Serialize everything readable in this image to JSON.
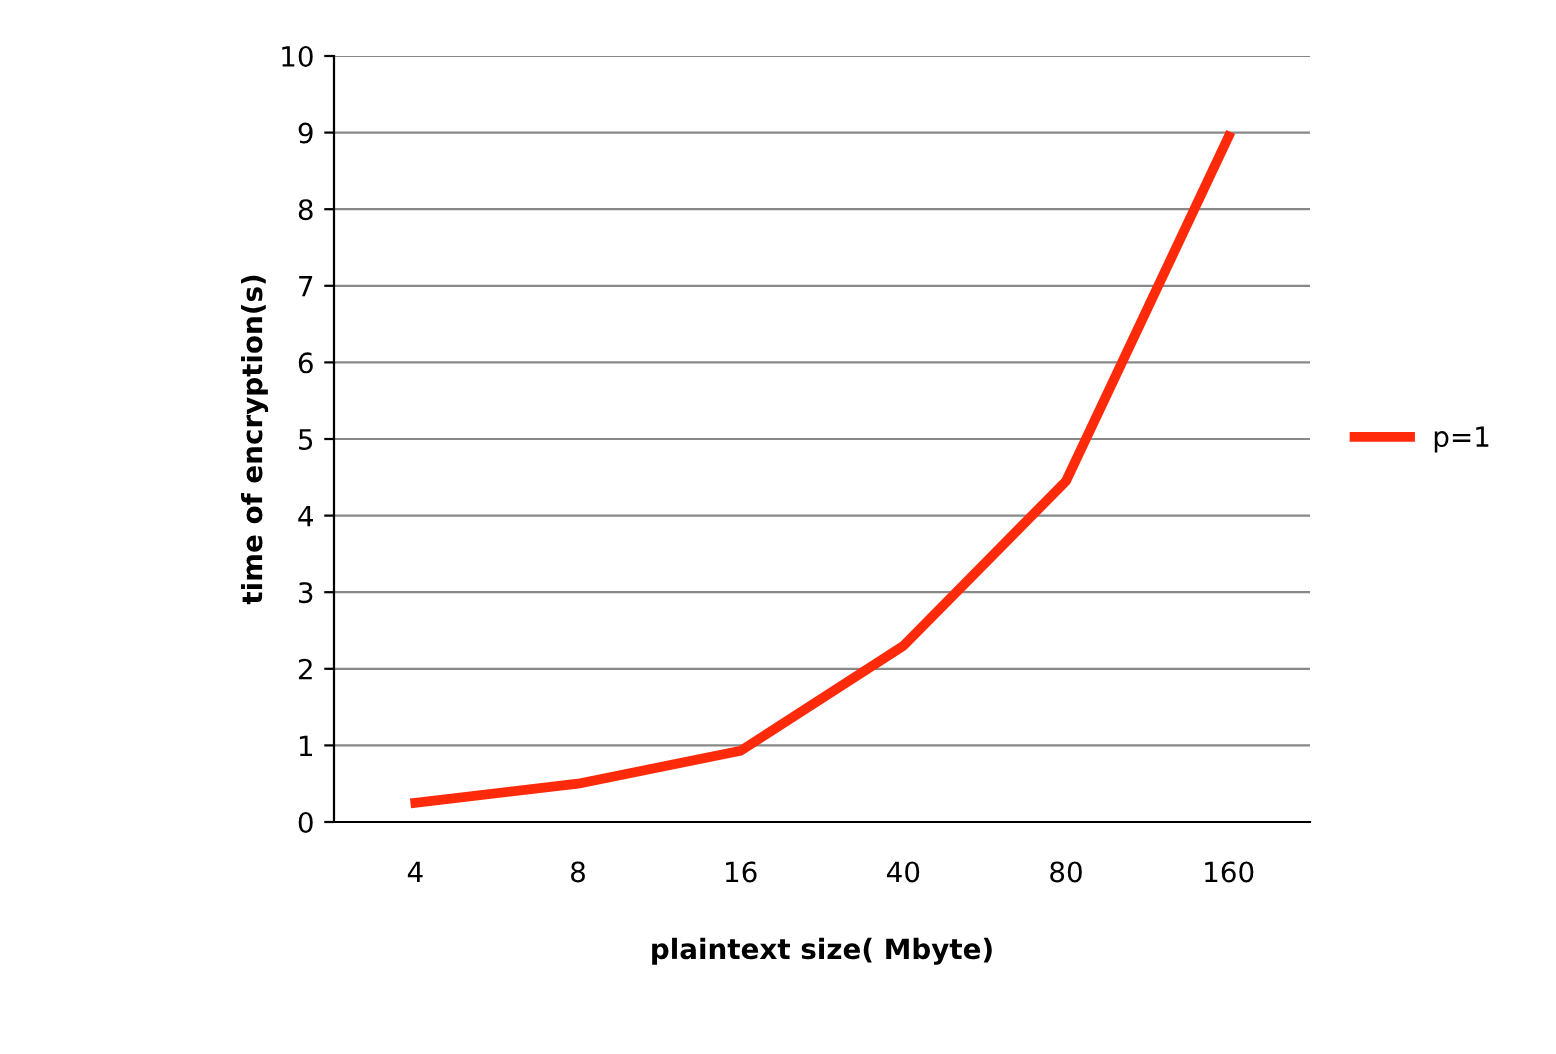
{
  "chart_data": {
    "type": "line",
    "xlabel": "plaintext size( Mbyte)",
    "ylabel": "time of encryption(s)",
    "categories": [
      "4",
      "8",
      "16",
      "40",
      "80",
      "160"
    ],
    "series": [
      {
        "name": "p=1",
        "color": "#ff2a0a",
        "values": [
          0.25,
          0.5,
          0.93,
          2.3,
          4.45,
          8.95
        ]
      }
    ],
    "ylim": [
      0,
      10
    ],
    "yticks": [
      0,
      1,
      2,
      3,
      4,
      5,
      6,
      7,
      8,
      9,
      10
    ],
    "grid": "y",
    "legend": "right",
    "marker": "none",
    "line_style": "solid"
  }
}
